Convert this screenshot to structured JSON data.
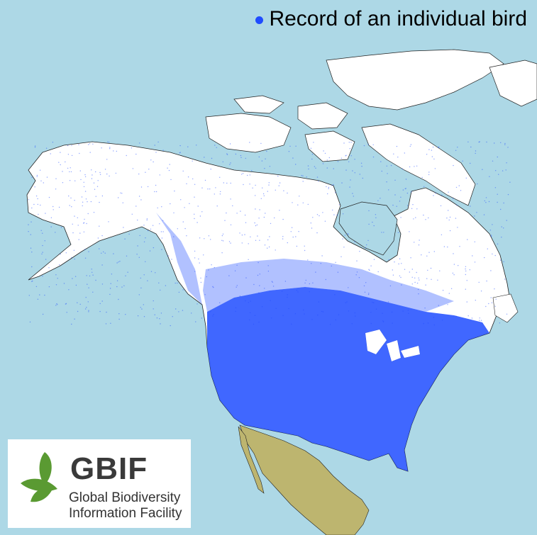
{
  "legend": {
    "label": "Record of an individual bird",
    "dot_color": "#1f4cff"
  },
  "logo": {
    "name": "GBIF",
    "subtitle_line1": "Global Biodiversity",
    "subtitle_line2": "Information Facility",
    "leaf_color": "#5a9a32"
  },
  "colors": {
    "ocean": "#add8e6",
    "land_covered": "#ffffff",
    "land_other": "#bdb56f",
    "records": "#1f4cff"
  }
}
